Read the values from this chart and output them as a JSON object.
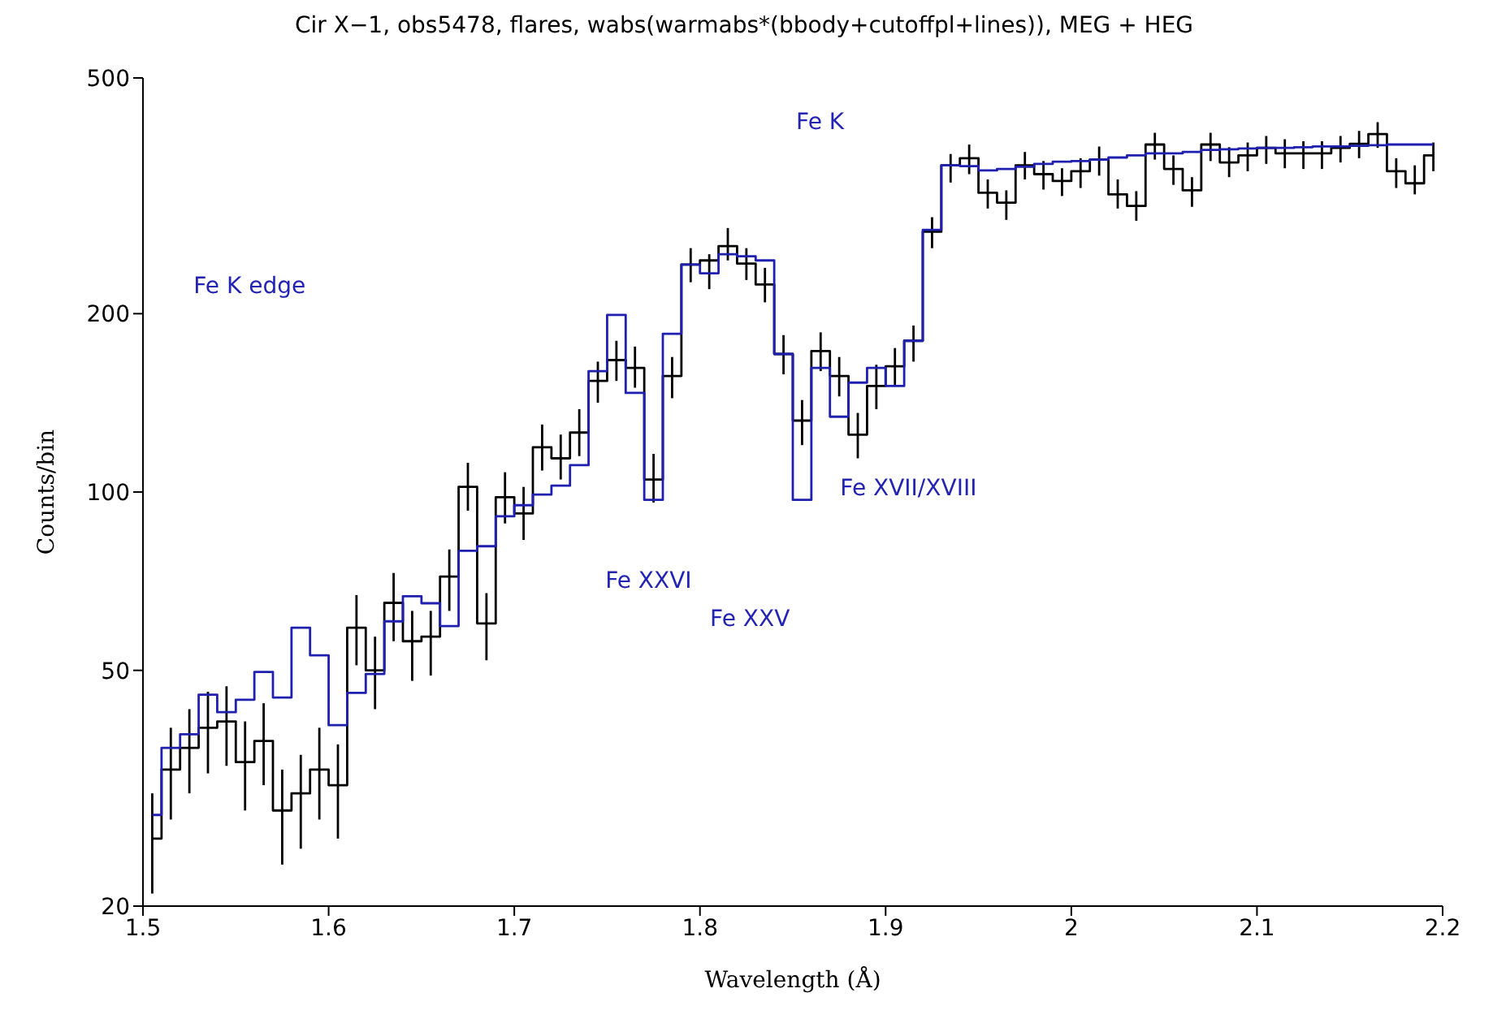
{
  "chart_data": {
    "type": "step",
    "title": "Cir X−1, obs5478, flares, wabs(warmabs*(bbody+cutoffpl+lines)), MEG + HEG",
    "xlabel": "Wavelength (Å)",
    "ylabel": "Counts/bin",
    "log": true,
    "xlim": [
      1.5,
      2.2
    ],
    "xticks": [
      1.5,
      1.6,
      1.7,
      1.8,
      1.9,
      2,
      2.1,
      2.2
    ],
    "ylim": [
      20,
      500
    ],
    "yticks": [
      20,
      50,
      100,
      200,
      500
    ],
    "x": [
      1.505,
      1.515,
      1.525,
      1.535,
      1.545,
      1.555,
      1.565,
      1.575,
      1.585,
      1.595,
      1.605,
      1.615,
      1.625,
      1.635,
      1.645,
      1.655,
      1.665,
      1.675,
      1.685,
      1.695,
      1.705,
      1.715,
      1.725,
      1.735,
      1.745,
      1.755,
      1.765,
      1.775,
      1.785,
      1.795,
      1.805,
      1.815,
      1.825,
      1.835,
      1.845,
      1.855,
      1.865,
      1.875,
      1.885,
      1.895,
      1.905,
      1.915,
      1.925,
      1.935,
      1.945,
      1.955,
      1.965,
      1.975,
      1.985,
      1.995,
      2.005,
      2.015,
      2.025,
      2.035,
      2.045,
      2.055,
      2.065,
      2.075,
      2.085,
      2.095,
      2.105,
      2.115,
      2.125,
      2.135,
      2.145,
      2.155,
      2.165,
      2.175,
      2.185,
      2.195
    ],
    "series": [
      {
        "color": "#000000",
        "values": [
          26,
          34,
          37,
          40,
          41,
          35,
          38,
          29,
          31,
          34,
          32,
          59,
          50,
          65,
          56,
          57,
          72,
          102,
          60,
          98,
          92,
          119,
          114,
          126,
          154,
          167,
          162,
          105,
          157,
          242,
          246,
          260,
          243,
          224,
          171,
          132,
          173,
          157,
          125,
          151,
          163,
          180,
          275,
          356,
          366,
          320,
          308,
          356,
          344,
          335,
          348,
          364,
          318,
          304,
          386,
          351,
          323,
          386,
          360,
          370,
          381,
          373,
          373,
          373,
          381,
          387,
          402,
          348,
          332,
          370
        ],
        "errors": [
          [
            21,
            31
          ],
          [
            28,
            40
          ],
          [
            31,
            43
          ],
          [
            33.5,
            46
          ],
          [
            34.5,
            47
          ],
          [
            29,
            41
          ],
          [
            32,
            44
          ],
          [
            23.5,
            34
          ],
          [
            25,
            36
          ],
          [
            28,
            40
          ],
          [
            26,
            37.5
          ],
          [
            51,
            67
          ],
          [
            43,
            57
          ],
          [
            56,
            73
          ],
          [
            48,
            63
          ],
          [
            49,
            63
          ],
          [
            63,
            80
          ],
          [
            93,
            112
          ],
          [
            52,
            67.5
          ],
          [
            88.5,
            108
          ],
          [
            83,
            102
          ],
          [
            108.7,
            130
          ],
          [
            105,
            125
          ],
          [
            115,
            138
          ],
          [
            141.5,
            166
          ],
          [
            154,
            180
          ],
          [
            150,
            176
          ],
          [
            96,
            116
          ],
          [
            144,
            169
          ],
          [
            226,
            258
          ],
          [
            220,
            252
          ],
          [
            246,
            279
          ],
          [
            228,
            258
          ],
          [
            209,
            239
          ],
          [
            158,
            184
          ],
          [
            120,
            143
          ],
          [
            160,
            186
          ],
          [
            145,
            169
          ],
          [
            114,
            136
          ],
          [
            138,
            164
          ],
          [
            151,
            175
          ],
          [
            166,
            191
          ],
          [
            258,
            291
          ],
          [
            333,
            372
          ],
          [
            344,
            386
          ],
          [
            301,
            337
          ],
          [
            288,
            323
          ],
          [
            337,
            375
          ],
          [
            324,
            362
          ],
          [
            316,
            352
          ],
          [
            326,
            366
          ],
          [
            342,
            383
          ],
          [
            301,
            337
          ],
          [
            287,
            322
          ],
          [
            364,
            404
          ],
          [
            330,
            370
          ],
          [
            303,
            340
          ],
          [
            362,
            404
          ],
          [
            340,
            382
          ],
          [
            348,
            389
          ],
          [
            358,
            399
          ],
          [
            352,
            394
          ],
          [
            351,
            391
          ],
          [
            351,
            391
          ],
          [
            360,
            399
          ],
          [
            366,
            407
          ],
          [
            381,
            421
          ],
          [
            326,
            366
          ],
          [
            318,
            356
          ],
          [
            348,
            389
          ]
        ]
      },
      {
        "color": "#1f1fb0",
        "values": [
          28.5,
          37,
          39,
          45.5,
          42.5,
          44.6,
          49.7,
          45,
          59,
          53,
          40.4,
          45.8,
          49.3,
          60.5,
          66.7,
          64.9,
          59.4,
          79.6,
          81,
          91,
          95,
          99,
          102.5,
          111,
          160,
          199,
          147,
          97,
          185,
          242,
          234,
          252,
          250,
          246,
          171,
          97,
          162,
          134,
          153,
          162,
          151,
          180,
          277,
          356,
          355,
          349,
          351,
          354,
          358,
          361,
          362,
          364,
          367,
          370,
          373,
          373,
          375,
          378,
          379,
          380,
          381,
          381,
          382,
          383,
          383,
          384,
          385,
          386,
          386,
          386
        ]
      }
    ],
    "annotations": [
      "Fe K edge",
      "Fe K",
      "Fe XXVI",
      "Fe XXV",
      "Fe XVII/XVIII"
    ]
  }
}
